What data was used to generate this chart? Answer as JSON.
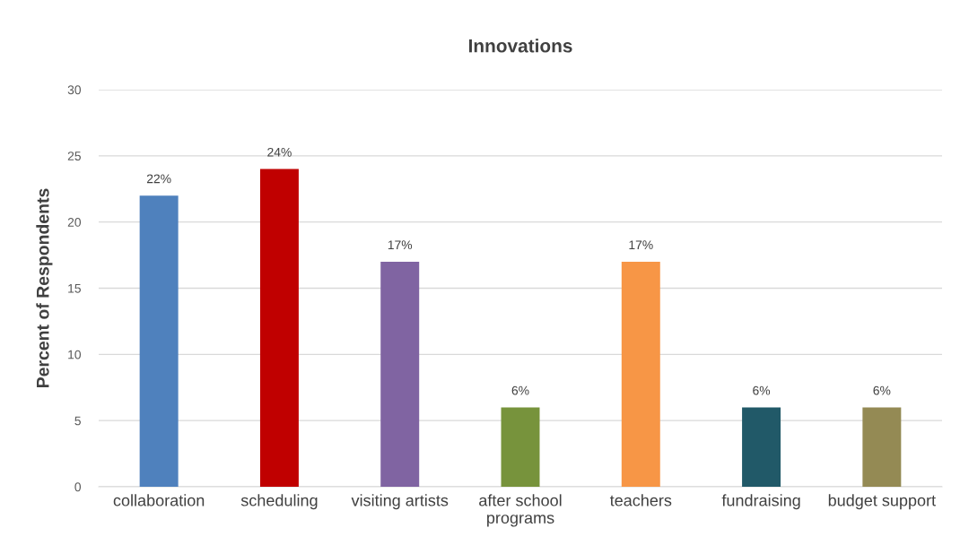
{
  "chart_data": {
    "type": "bar",
    "title": "Innovations",
    "ylabel": "Percent of Respondents",
    "categories": [
      "collaboration",
      "scheduling",
      "visiting artists",
      "after school\nprograms",
      "teachers",
      "fundraising",
      "budget support"
    ],
    "values": [
      22,
      24,
      17,
      6,
      17,
      6,
      6
    ],
    "colors": [
      "#4f81bd",
      "#c00000",
      "#8064a2",
      "#77933c",
      "#f79646",
      "#215968",
      "#948a54"
    ],
    "value_labels": [
      "22%",
      "24%",
      "17%",
      "6%",
      "17%",
      "6%",
      "6%"
    ],
    "ylim": [
      0,
      30
    ],
    "yticks": [
      0,
      5,
      10,
      15,
      20,
      25,
      30
    ],
    "grid": "y",
    "legend": false
  }
}
